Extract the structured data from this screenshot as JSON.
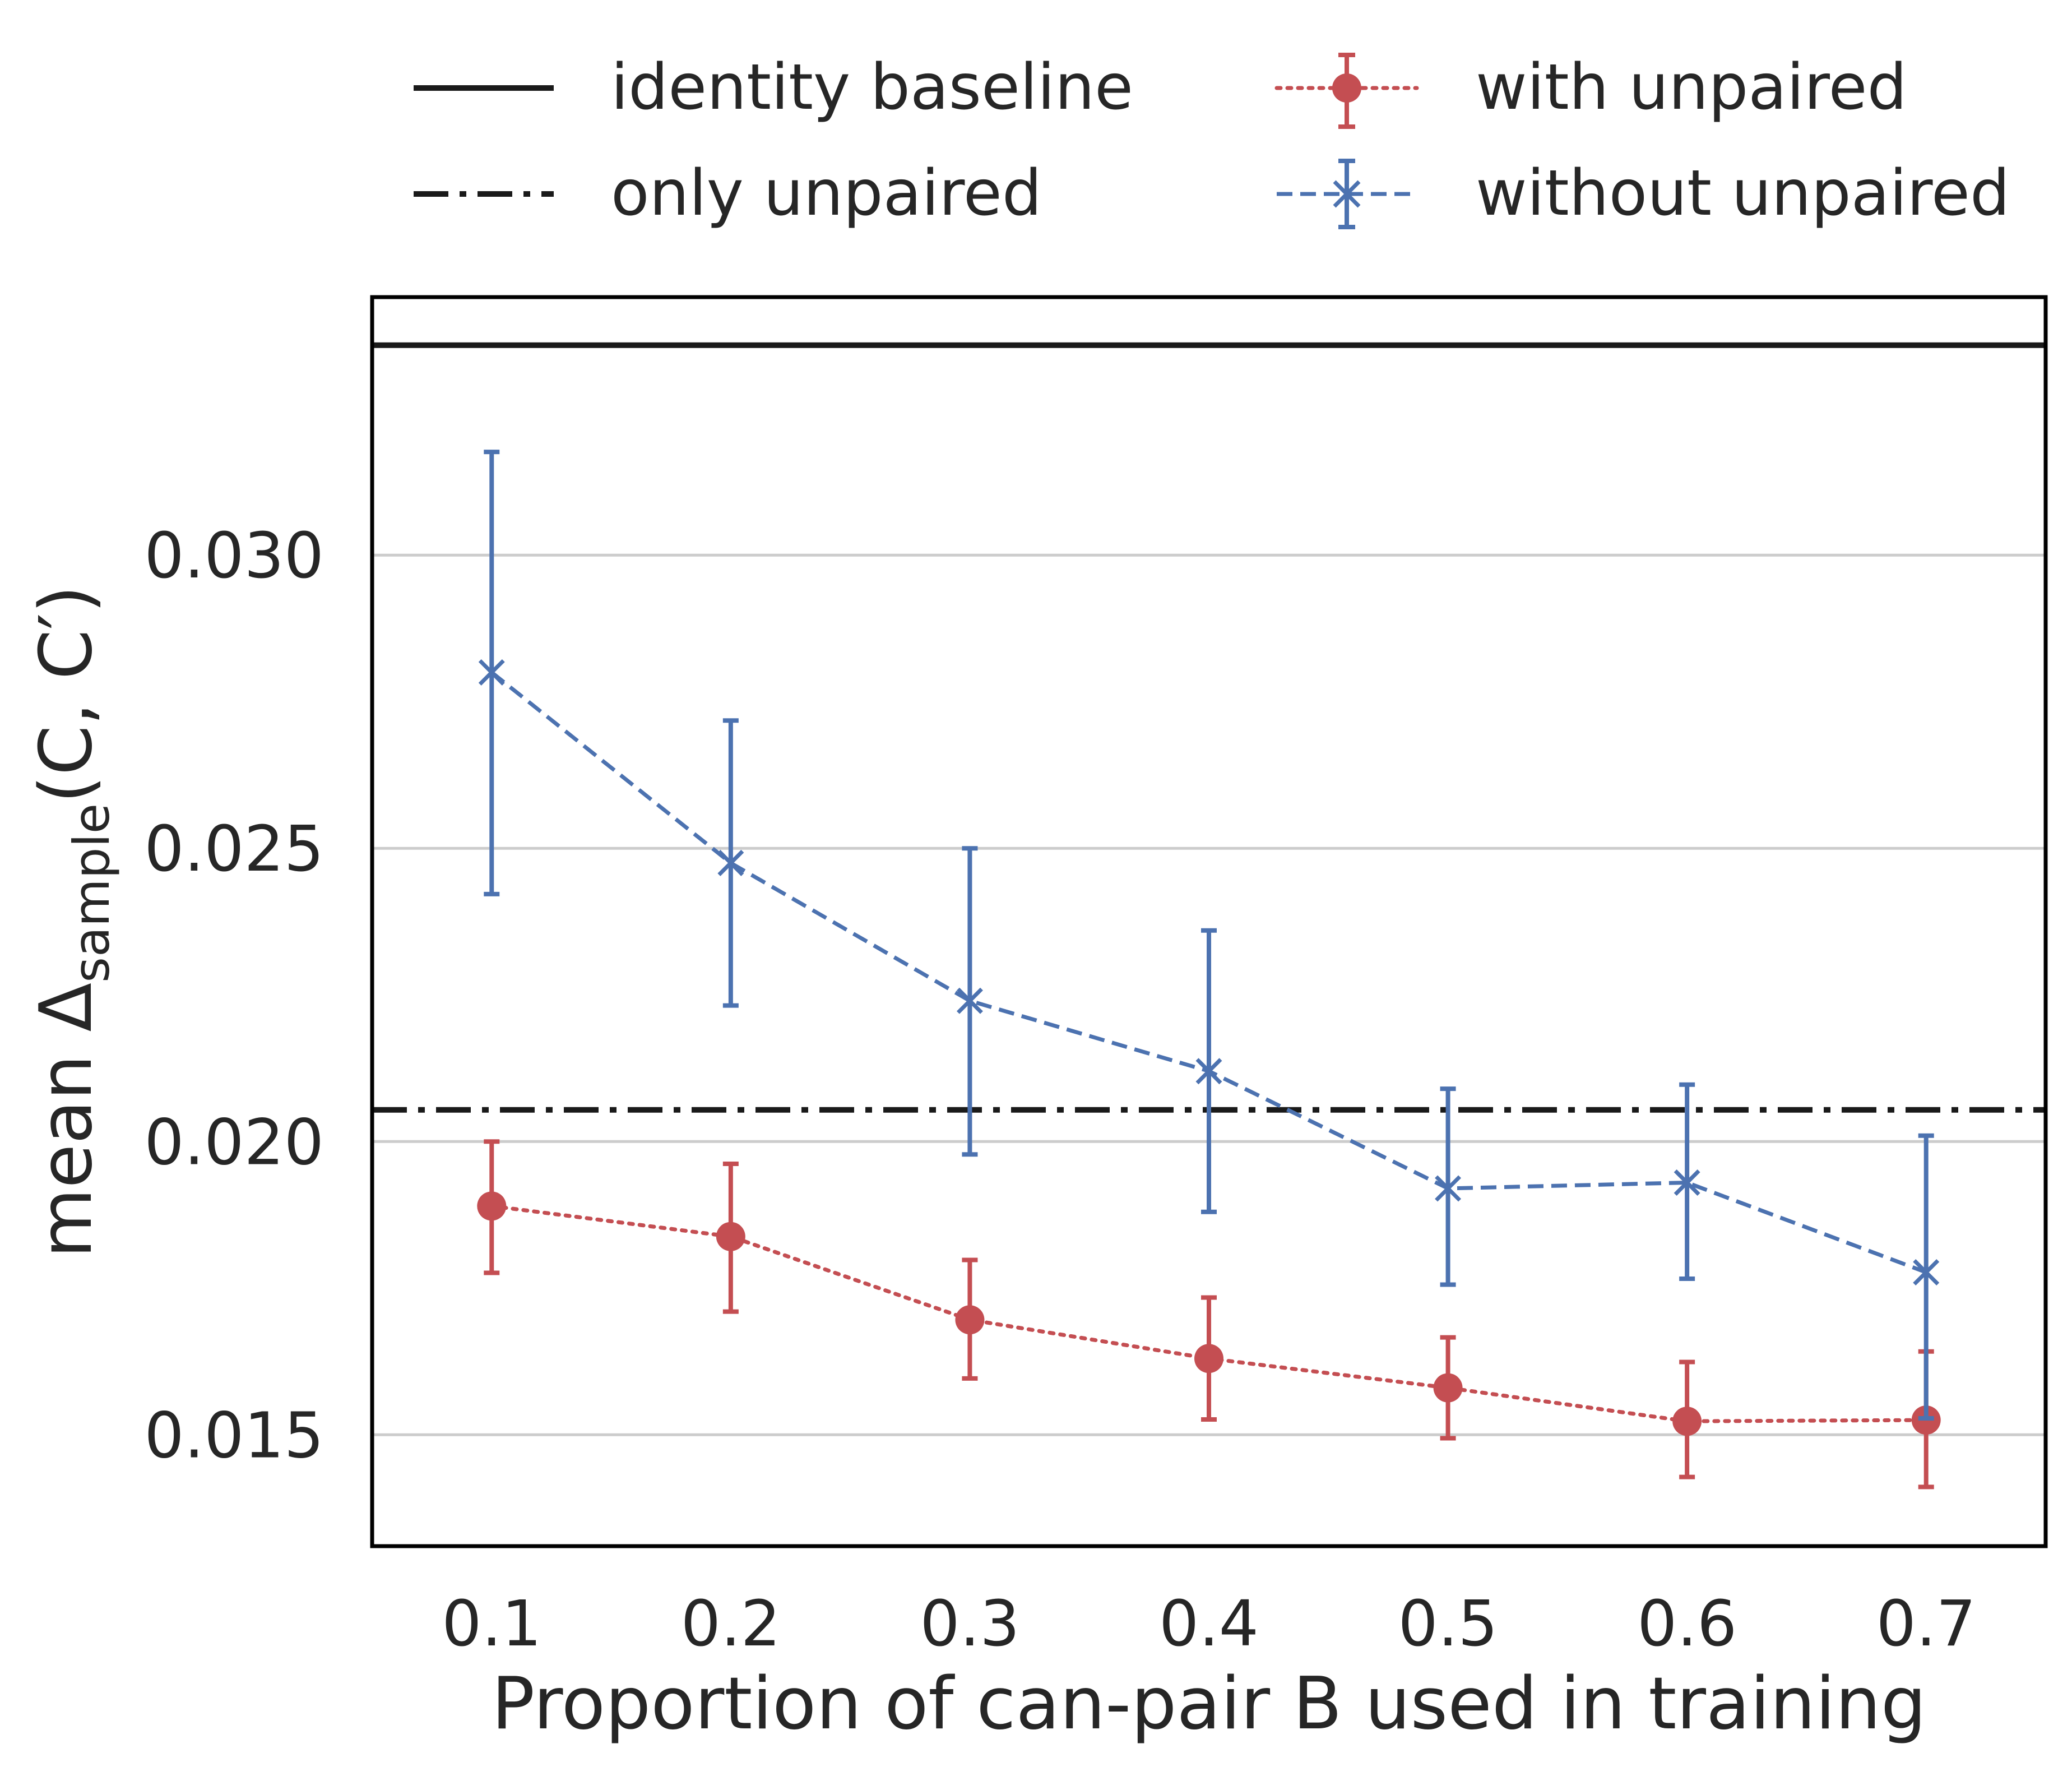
{
  "chart_data": {
    "type": "line",
    "xlabel": "Proportion of can-pair B used in training",
    "ylabel": {
      "prefix": "mean Δ",
      "subscript": "sample",
      "suffix": "(C, C′)"
    },
    "xlim": [
      0.05,
      0.75
    ],
    "ylim": [
      0.0131,
      0.0344
    ],
    "x_ticks": [
      "0.1",
      "0.2",
      "0.3",
      "0.4",
      "0.5",
      "0.6",
      "0.7"
    ],
    "y_ticks": [
      "0.015",
      "0.020",
      "0.025",
      "0.030"
    ],
    "grid": "horizontal",
    "legend_position": "top, outside plot, 2 columns",
    "x": [
      0.1,
      0.2,
      0.3,
      0.4,
      0.5,
      0.6,
      0.7
    ],
    "series": [
      {
        "name": "with unpaired",
        "style": "dotted",
        "marker": "circle",
        "color": "#c44e52",
        "values": [
          0.0189,
          0.01838,
          0.01696,
          0.0163,
          0.0158,
          0.01523,
          0.01525
        ],
        "err_low": [
          0.01776,
          0.0171,
          0.01596,
          0.01526,
          0.01494,
          0.01428,
          0.01411
        ],
        "err_high": [
          0.02,
          0.01962,
          0.01798,
          0.01734,
          0.01666,
          0.01624,
          0.01642
        ]
      },
      {
        "name": "without unpaired",
        "style": "dashed",
        "marker": "x",
        "color": "#4c72b0",
        "values": [
          0.028,
          0.02475,
          0.0224,
          0.0212,
          0.0192,
          0.0193,
          0.01777
        ],
        "err_low": [
          0.02422,
          0.02232,
          0.01978,
          0.0188,
          0.01756,
          0.01766,
          0.01528
        ],
        "err_high": [
          0.03176,
          0.02718,
          0.025,
          0.0236,
          0.0209,
          0.02097,
          0.0201
        ]
      }
    ],
    "reference_lines": [
      {
        "name": "identity baseline",
        "style": "solid",
        "color": "#1a1a1a",
        "y": 0.03358
      },
      {
        "name": "only unpaired",
        "style": "dashdot",
        "color": "#1a1a1a",
        "y": 0.02054
      }
    ]
  }
}
